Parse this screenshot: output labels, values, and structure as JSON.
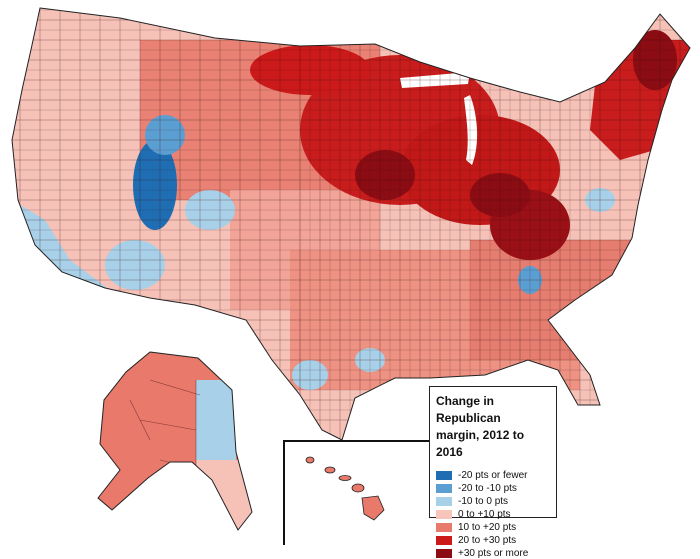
{
  "legend": {
    "title_line1": "Change in Republican",
    "title_line2": "margin, 2012 to 2016",
    "items": [
      {
        "label": "-20 pts or fewer",
        "color": "#1f6eb4"
      },
      {
        "label": "-20 to -10 pts",
        "color": "#5b9fd2"
      },
      {
        "label": "-10 to 0 pts",
        "color": "#a8d0e8"
      },
      {
        "label": "0 to +10 pts",
        "color": "#f8c5bd"
      },
      {
        "label": "10 to +20 pts",
        "color": "#e87a6c"
      },
      {
        "label": "20 to +30 pts",
        "color": "#cc1a1a"
      },
      {
        "label": "+30 pts or more",
        "color": "#8c0c14"
      }
    ]
  },
  "regions": [
    "Contiguous United States",
    "Alaska",
    "Hawaii"
  ],
  "colors": {
    "border": "#222222",
    "background": "#ffffff"
  }
}
